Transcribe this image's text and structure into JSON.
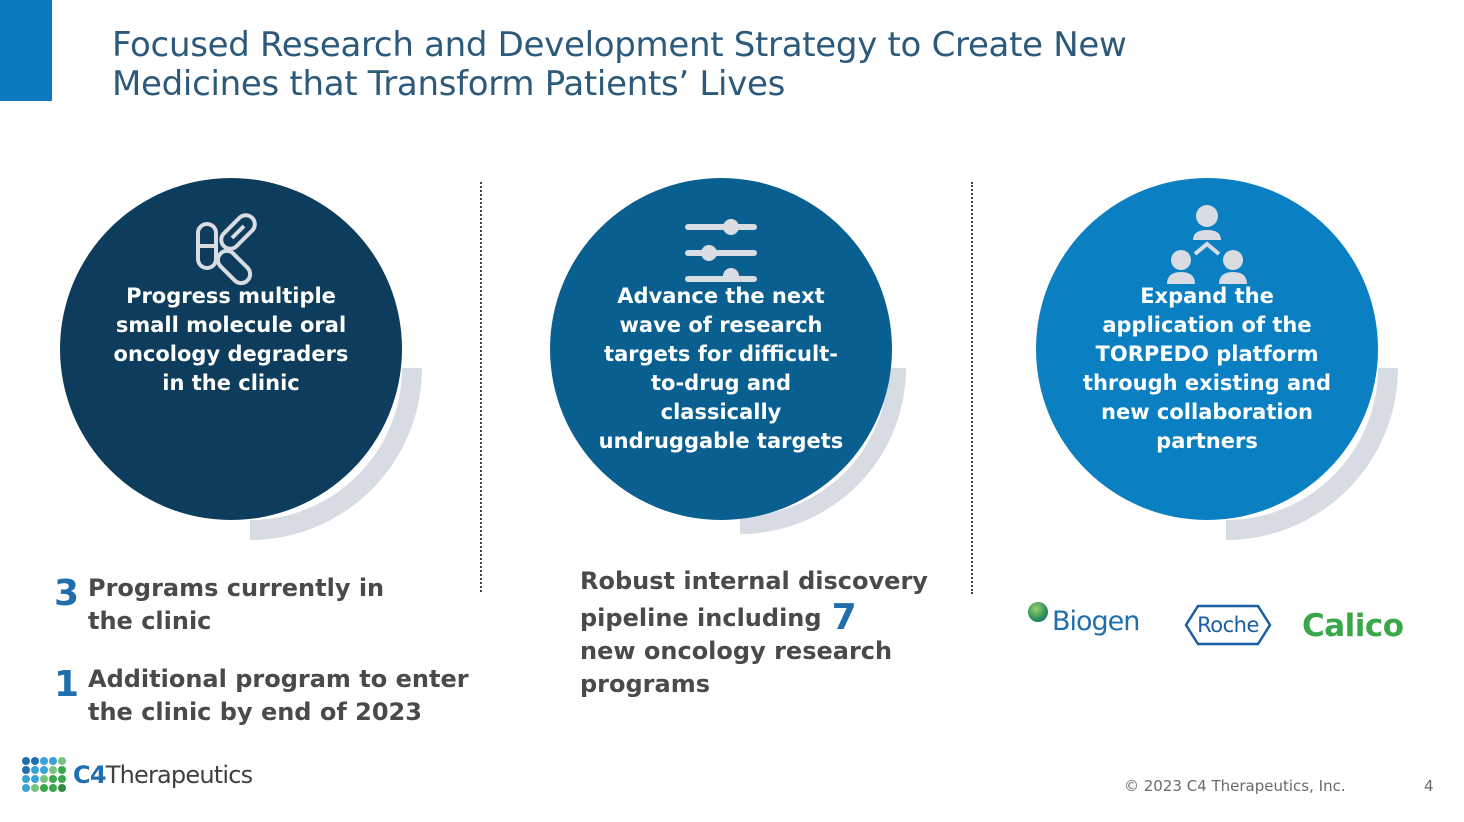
{
  "slide": {
    "title_line1": "Focused Research and Development Strategy to Create New",
    "title_line2": "Medicines that Transform Patients’ Lives"
  },
  "colors": {
    "accent_bar": "#0b79bf",
    "circle1": "#0d3c5c",
    "circle2": "#085f90",
    "circle3": "#0a7fc1",
    "shadow": "#d7dbe3",
    "number_blue": "#1f6fae"
  },
  "pillars": [
    {
      "icon": "pills-icon",
      "text": "Progress multiple small molecule oral oncology degraders in the clinic"
    },
    {
      "icon": "sliders-icon",
      "text": "Advance the next wave of research targets for difficult-to-drug and classically undruggable targets"
    },
    {
      "icon": "collaboration-network-icon",
      "text": "Expand the application of the TORPEDO platform through existing and new collaboration partners"
    }
  ],
  "clinic_stats": [
    {
      "number": "3",
      "text_line1": "Programs currently in",
      "text_line2": "the clinic"
    },
    {
      "number": "1",
      "text_line1": "Additional program to enter",
      "text_line2": "the clinic by end of 2023"
    }
  ],
  "discovery": {
    "line1": "Robust internal discovery",
    "line2": "pipeline including",
    "number": "7",
    "line3": "new oncology research",
    "line4": "programs"
  },
  "partners": [
    "Biogen",
    "Roche",
    "Calico"
  ],
  "footer": {
    "company_bold": "C4",
    "company_rest": "Therapeutics",
    "copyright": "© 2023 C4 Therapeutics, Inc.",
    "page_number": "4"
  }
}
